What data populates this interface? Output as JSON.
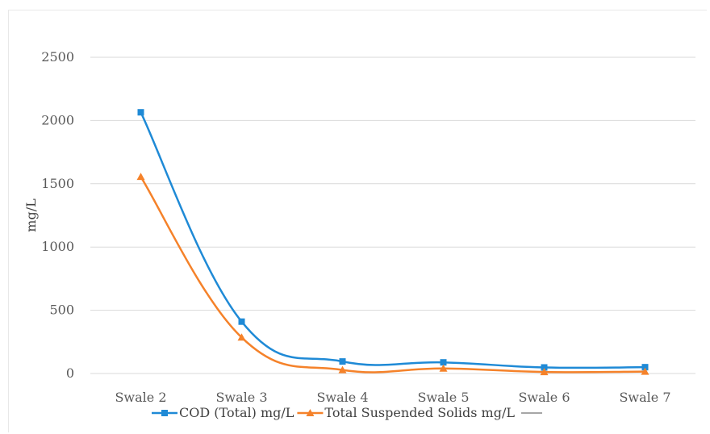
{
  "chart_data": {
    "type": "line",
    "categories": [
      "Swale 2",
      "Swale 3",
      "Swale 4",
      "Swale 5",
      "Swale 6",
      "Swale 7"
    ],
    "series": [
      {
        "name": "COD (Total) mg/L",
        "values": [
          2065,
          410,
          95,
          88,
          48,
          50
        ],
        "color": "#1f8ad6",
        "marker": "square"
      },
      {
        "name": "Total Suspended Solids mg/L",
        "values": [
          1555,
          285,
          28,
          40,
          12,
          15
        ],
        "color": "#f5822a",
        "marker": "triangle"
      }
    ],
    "extra_legend_series": {
      "name": "",
      "color": "#a6a6a6"
    },
    "ylabel": "mg/L",
    "xlabel": "",
    "ylim": [
      0,
      2500
    ],
    "yticks": [
      0,
      500,
      1000,
      1500,
      2000,
      2500
    ],
    "grid": true,
    "smooth": true,
    "legend_position": "bottom"
  }
}
